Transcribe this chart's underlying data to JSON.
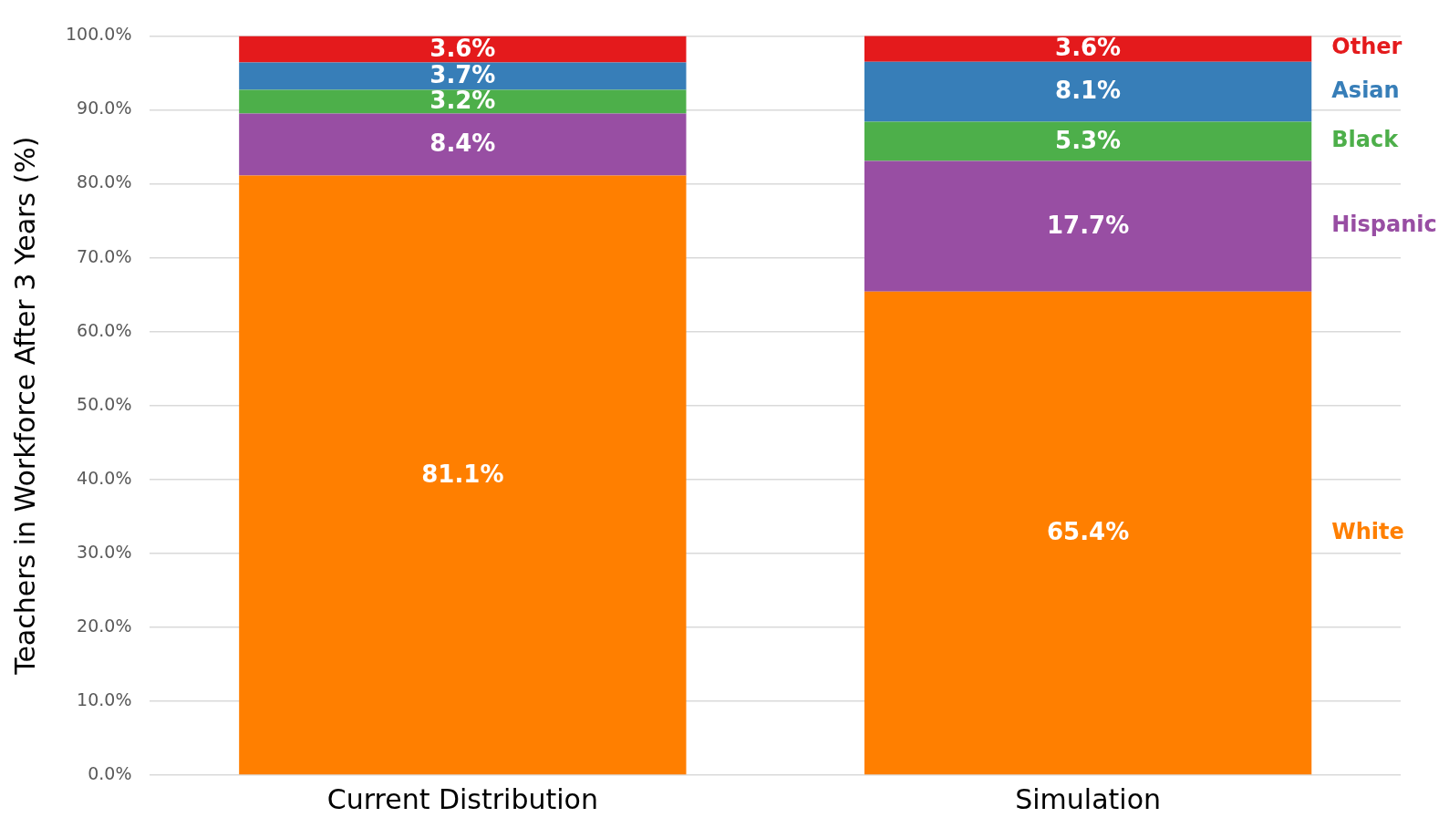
{
  "chart_data": {
    "type": "bar",
    "stacked": true,
    "ylabel": "Teachers in Workforce After 3 Years (%)",
    "categories": [
      "Current Distribution",
      "Simulation"
    ],
    "series": [
      {
        "name": "White",
        "color": "#ff7f00",
        "values": [
          81.1,
          65.4
        ],
        "value_labels": [
          "81.1%",
          "65.4%"
        ]
      },
      {
        "name": "Hispanic",
        "color": "#984ea3",
        "values": [
          8.4,
          17.7
        ],
        "value_labels": [
          "8.4%",
          "17.7%"
        ]
      },
      {
        "name": "Black",
        "color": "#4daf4a",
        "values": [
          3.2,
          5.3
        ],
        "value_labels": [
          "3.2%",
          "5.3%"
        ]
      },
      {
        "name": "Asian",
        "color": "#377eb8",
        "values": [
          3.7,
          8.1
        ],
        "value_labels": [
          "3.7%",
          "8.1%"
        ]
      },
      {
        "name": "Other",
        "color": "#e41a1c",
        "values": [
          3.6,
          3.6
        ],
        "value_labels": [
          "3.6%",
          "3.6%"
        ]
      }
    ],
    "ylim": [
      0,
      100
    ],
    "yticks": [
      {
        "value": 0,
        "label": "0.0%"
      },
      {
        "value": 10,
        "label": "10.0%"
      },
      {
        "value": 20,
        "label": "20.0%"
      },
      {
        "value": 30,
        "label": "30.0%"
      },
      {
        "value": 40,
        "label": "40.0%"
      },
      {
        "value": 50,
        "label": "50.0%"
      },
      {
        "value": 60,
        "label": "60.0%"
      },
      {
        "value": 70,
        "label": "70.0%"
      },
      {
        "value": 80,
        "label": "80.0%"
      },
      {
        "value": 90,
        "label": "90.0%"
      },
      {
        "value": 100,
        "label": "100.0%"
      }
    ],
    "grid": "y"
  }
}
